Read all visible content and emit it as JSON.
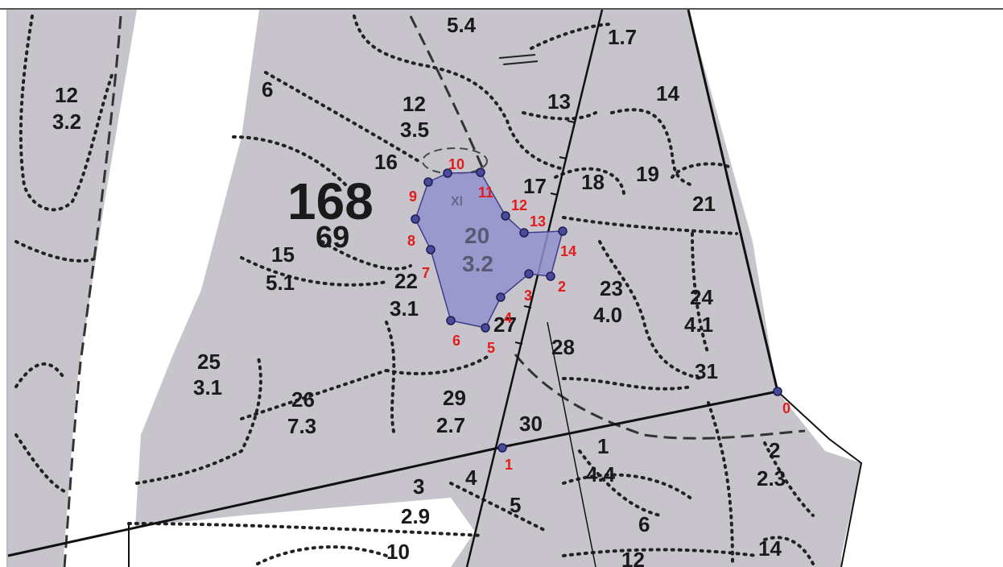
{
  "map": {
    "block": {
      "number": "168",
      "area": "69"
    },
    "polygon": {
      "label": "20",
      "area": "3.2",
      "letter": "Xl"
    },
    "compartments": [
      {
        "n": "5.4"
      },
      {
        "n": "1.7"
      },
      {
        "n": "12",
        "a": "3.2"
      },
      {
        "n": "6"
      },
      {
        "n": "12",
        "a": "3.5"
      },
      {
        "n": "13"
      },
      {
        "n": "14"
      },
      {
        "n": "16"
      },
      {
        "n": "17"
      },
      {
        "n": "18"
      },
      {
        "n": "19"
      },
      {
        "n": "21"
      },
      {
        "n": "15",
        "a": "5.1"
      },
      {
        "n": "22",
        "a": "3.1"
      },
      {
        "n": "23",
        "a": "4.0"
      },
      {
        "n": "24",
        "a": "4.1"
      },
      {
        "n": "27"
      },
      {
        "n": "28"
      },
      {
        "n": "25",
        "a": "3.1"
      },
      {
        "n": "26",
        "a": "7.3"
      },
      {
        "n": "29",
        "a": "2.7"
      },
      {
        "n": "30"
      },
      {
        "n": "31"
      },
      {
        "n": "1",
        "a": "4.4"
      },
      {
        "n": "2",
        "a": "2.3"
      },
      {
        "n": "3",
        "a": "2.9"
      },
      {
        "n": "4"
      },
      {
        "n": "5"
      },
      {
        "n": "6"
      },
      {
        "n": "10"
      },
      {
        "n": "12"
      },
      {
        "n": "14"
      }
    ],
    "vertex_labels": [
      "0",
      "1",
      "2",
      "3",
      "4",
      "5",
      "6",
      "7",
      "8",
      "9",
      "10",
      "11",
      "12",
      "13",
      "14"
    ],
    "colors": {
      "land": "#c7c5cb",
      "polygon": "#9290cf",
      "vertex": "#4a4a9a",
      "label": "#e21b1b"
    }
  }
}
